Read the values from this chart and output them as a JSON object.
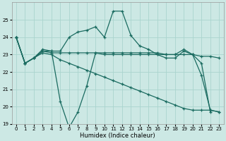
{
  "xlabel": "Humidex (Indice chaleur)",
  "background_color": "#cce8e4",
  "grid_color": "#aad4ce",
  "line_color": "#1a6b60",
  "ylim": [
    19,
    26
  ],
  "yticks": [
    19,
    20,
    21,
    22,
    23,
    24,
    25
  ],
  "xlim": [
    -0.5,
    23.5
  ],
  "xticks": [
    0,
    1,
    2,
    3,
    4,
    5,
    6,
    7,
    8,
    9,
    10,
    11,
    12,
    13,
    14,
    15,
    16,
    17,
    18,
    19,
    20,
    21,
    22,
    23
  ],
  "line1_x": [
    0,
    1,
    2,
    3,
    4,
    5,
    6,
    7,
    8,
    9,
    10,
    11,
    12,
    13,
    14,
    15,
    16,
    17,
    18,
    19,
    20,
    21,
    22,
    23
  ],
  "line1_y": [
    24.0,
    22.5,
    22.8,
    23.2,
    23.2,
    20.3,
    18.8,
    19.7,
    21.2,
    23.1,
    23.0,
    23.0,
    23.0,
    23.0,
    23.0,
    23.0,
    23.0,
    22.8,
    22.8,
    23.2,
    23.0,
    21.8,
    19.8,
    19.7
  ],
  "line2_x": [
    0,
    1,
    2,
    3,
    4,
    5,
    6,
    7,
    8,
    9,
    10,
    11,
    12,
    13,
    14,
    15,
    16,
    17,
    18,
    19,
    20,
    21,
    22
  ],
  "line2_y": [
    24.0,
    22.5,
    22.8,
    23.3,
    23.2,
    23.2,
    24.0,
    24.3,
    24.4,
    24.6,
    24.0,
    25.5,
    25.5,
    24.1,
    23.5,
    23.3,
    23.0,
    23.0,
    23.0,
    23.3,
    23.0,
    22.5,
    19.7
  ],
  "line3_x": [
    0,
    1,
    2,
    3,
    4,
    5,
    6,
    7,
    8,
    9,
    10,
    11,
    12,
    13,
    14,
    15,
    16,
    17,
    18,
    19,
    20,
    21,
    22,
    23
  ],
  "line3_y": [
    24.0,
    22.5,
    22.8,
    23.2,
    23.1,
    23.1,
    23.1,
    23.1,
    23.1,
    23.1,
    23.1,
    23.1,
    23.1,
    23.1,
    23.1,
    23.1,
    23.1,
    23.0,
    23.0,
    23.0,
    23.0,
    22.9,
    22.9,
    22.8
  ],
  "line4_x": [
    0,
    1,
    2,
    3,
    4,
    5,
    6,
    7,
    8,
    9,
    10,
    11,
    12,
    13,
    14,
    15,
    16,
    17,
    18,
    19,
    20,
    21,
    22,
    23
  ],
  "line4_y": [
    24.0,
    22.5,
    22.8,
    23.1,
    23.0,
    22.7,
    22.5,
    22.3,
    22.1,
    21.9,
    21.7,
    21.5,
    21.3,
    21.1,
    20.9,
    20.7,
    20.5,
    20.3,
    20.1,
    19.9,
    19.8,
    19.8,
    19.8,
    19.7
  ]
}
